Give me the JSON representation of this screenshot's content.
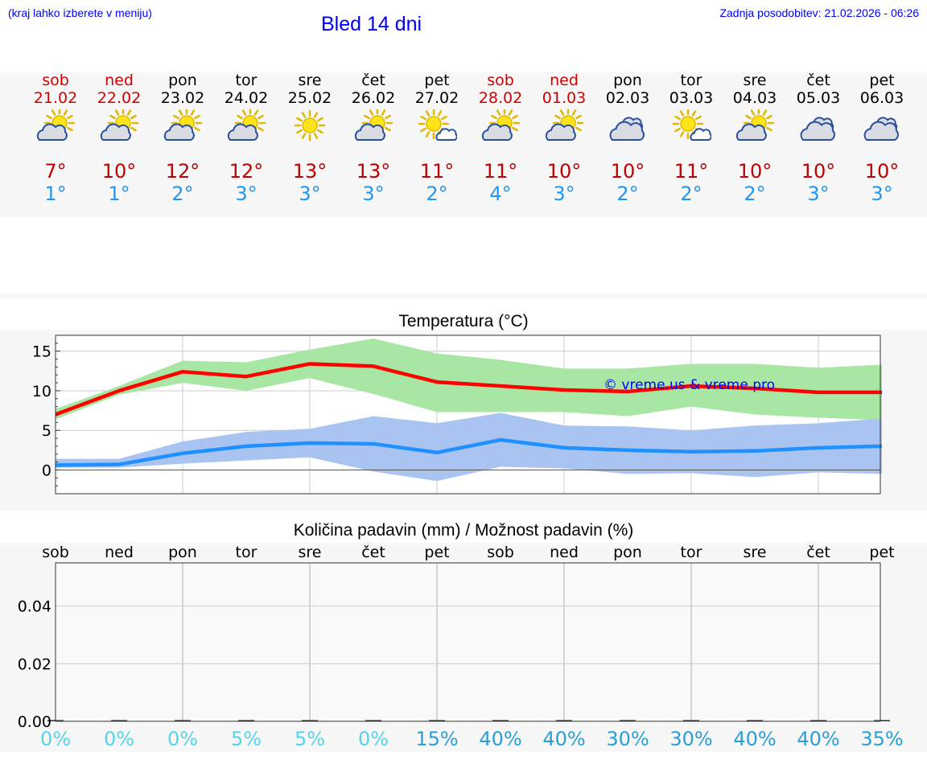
{
  "header": {
    "hint": "(kraj lahko izberete v meniju)",
    "title": "Bled 14 dni",
    "updated": "Zadnja posodobitev: 21.02.2026 - 06:26"
  },
  "days": [
    {
      "name": "sob",
      "date": "21.02",
      "icon": "sun-cloud-icon",
      "max": "7°",
      "min": "1°",
      "weekend": true
    },
    {
      "name": "ned",
      "date": "22.02",
      "icon": "sun-cloud-icon",
      "max": "10°",
      "min": "1°",
      "weekend": true
    },
    {
      "name": "pon",
      "date": "23.02",
      "icon": "sun-cloud-icon",
      "max": "12°",
      "min": "2°",
      "weekend": false
    },
    {
      "name": "tor",
      "date": "24.02",
      "icon": "sun-cloud-icon",
      "max": "12°",
      "min": "3°",
      "weekend": false
    },
    {
      "name": "sre",
      "date": "25.02",
      "icon": "sun-icon",
      "max": "13°",
      "min": "3°",
      "weekend": false
    },
    {
      "name": "čet",
      "date": "26.02",
      "icon": "sun-cloud-icon",
      "max": "13°",
      "min": "3°",
      "weekend": false
    },
    {
      "name": "pet",
      "date": "27.02",
      "icon": "sun-small-cloud-icon",
      "max": "11°",
      "min": "2°",
      "weekend": false
    },
    {
      "name": "sob",
      "date": "28.02",
      "icon": "sun-cloud-icon",
      "max": "11°",
      "min": "4°",
      "weekend": true
    },
    {
      "name": "ned",
      "date": "01.03",
      "icon": "sun-cloud-icon",
      "max": "10°",
      "min": "3°",
      "weekend": true
    },
    {
      "name": "pon",
      "date": "02.03",
      "icon": "cloud-icon",
      "max": "10°",
      "min": "2°",
      "weekend": false
    },
    {
      "name": "tor",
      "date": "03.03",
      "icon": "sun-small-cloud-icon",
      "max": "11°",
      "min": "2°",
      "weekend": false
    },
    {
      "name": "sre",
      "date": "04.03",
      "icon": "sun-cloud-icon",
      "max": "10°",
      "min": "2°",
      "weekend": false
    },
    {
      "name": "čet",
      "date": "05.03",
      "icon": "cloud-icon",
      "max": "10°",
      "min": "3°",
      "weekend": false
    },
    {
      "name": "pet",
      "date": "06.03",
      "icon": "cloud-icon",
      "max": "10°",
      "min": "3°",
      "weekend": false
    }
  ],
  "colors": {
    "weekend": "#d40000",
    "weekday": "#000000",
    "max_line": "#ff0000",
    "min_line": "#1e90ff",
    "max_band": "#a8e6a3",
    "min_band": "#a9c4f0",
    "low_prob": "#55d4e8",
    "high_prob": "#2a9fd6"
  },
  "chart_data": [
    {
      "type": "line",
      "title": "Temperatura (°C)",
      "xlabel": "",
      "ylabel": "",
      "ylim": [
        -3,
        17
      ],
      "yticks": [
        "15",
        "10",
        "5",
        "0"
      ],
      "watermark": "© vreme.us & vreme.pro",
      "grid": true,
      "x": [
        0,
        1,
        2,
        3,
        4,
        5,
        6,
        7,
        8,
        9,
        10,
        11,
        12,
        13
      ],
      "series": [
        {
          "name": "max",
          "values": [
            7,
            10,
            12.4,
            11.8,
            13.4,
            13.1,
            11.1,
            10.6,
            10.1,
            9.9,
            10.6,
            10.3,
            9.8,
            9.8
          ]
        },
        {
          "name": "min",
          "values": [
            0.6,
            0.7,
            2.1,
            3.0,
            3.4,
            3.3,
            2.2,
            3.8,
            2.8,
            2.5,
            2.3,
            2.4,
            2.8,
            3.0
          ]
        }
      ],
      "bands": [
        {
          "name": "max_range",
          "upper": [
            7.7,
            10.6,
            13.8,
            13.6,
            15.2,
            16.6,
            14.7,
            13.9,
            12.8,
            12.8,
            13.4,
            13.4,
            12.9,
            13.3
          ],
          "lower": [
            6.4,
            9.5,
            11.0,
            10.0,
            11.6,
            9.6,
            7.3,
            7.3,
            7.3,
            6.8,
            8.0,
            7.0,
            6.6,
            6.3
          ]
        },
        {
          "name": "min_range",
          "upper": [
            1.4,
            1.4,
            3.6,
            4.8,
            5.2,
            6.8,
            5.9,
            7.2,
            5.6,
            5.5,
            5.0,
            5.6,
            5.9,
            6.5
          ],
          "lower": [
            0.3,
            0.3,
            0.8,
            1.2,
            1.6,
            -0.2,
            -1.4,
            0.4,
            0.2,
            -0.5,
            -0.4,
            -0.9,
            -0.3,
            -0.5
          ]
        }
      ]
    },
    {
      "type": "bar",
      "title": "Količina padavin (mm) / Možnost padavin (%)",
      "categories": [
        "sob",
        "ned",
        "pon",
        "tor",
        "sre",
        "čet",
        "pet",
        "sob",
        "ned",
        "pon",
        "tor",
        "sre",
        "čet",
        "pet"
      ],
      "values": [
        0,
        0,
        0,
        0,
        0,
        0,
        0,
        0,
        0,
        0,
        0,
        0,
        0,
        0
      ],
      "probabilities": [
        "0%",
        "0%",
        "0%",
        "5%",
        "5%",
        "0%",
        "15%",
        "40%",
        "40%",
        "30%",
        "30%",
        "40%",
        "40%",
        "35%"
      ],
      "prob_values": [
        0,
        0,
        0,
        5,
        5,
        0,
        15,
        40,
        40,
        30,
        30,
        40,
        40,
        35
      ],
      "ylim": [
        0,
        0.055
      ],
      "yticks": [
        "0.04",
        "0.02",
        "0.00"
      ],
      "grid": true
    }
  ]
}
